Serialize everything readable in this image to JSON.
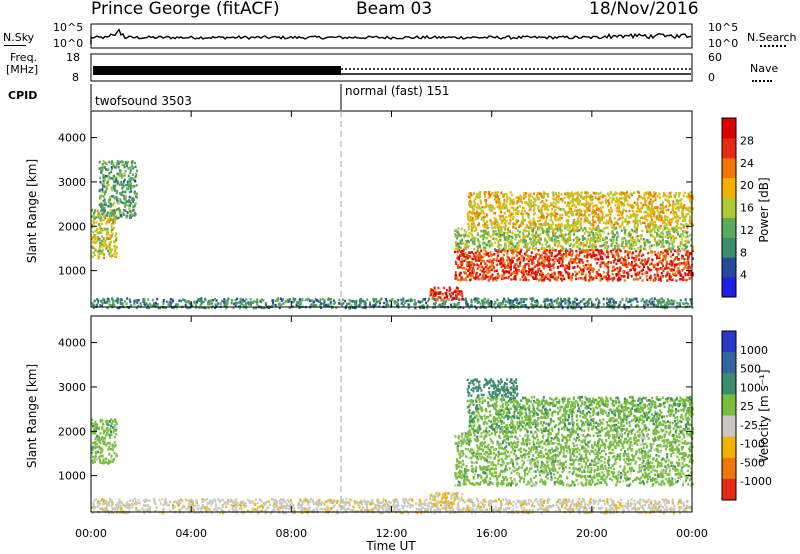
{
  "header": {
    "station": "Prince George (fitACF)",
    "beam": "Beam 03",
    "date": "18/Nov/2016"
  },
  "noise_panel": {
    "left_label": "N.Sky",
    "left_ticks": [
      "10^5",
      "10^0"
    ],
    "right_label": "N.Search",
    "right_ticks": [
      "10^5",
      "10^0"
    ]
  },
  "freq_panel": {
    "left_label_line1": "Freq.",
    "left_label_line2": "[MHz]",
    "left_ticks": [
      "18",
      "8"
    ],
    "right_label": "Nave",
    "right_ticks": [
      "60",
      "0"
    ]
  },
  "cpid_panel": {
    "label": "CPID",
    "modes": [
      {
        "name": "twofsound 3503",
        "start_hour": 0,
        "end_hour": 10
      },
      {
        "name": "normal (fast) 151",
        "start_hour": 10,
        "end_hour": 24
      }
    ]
  },
  "power_panel": {
    "ylabel": "Slant Range [km]",
    "yticks": [
      1000,
      2000,
      3000,
      4000
    ],
    "ylim": [
      180,
      4600
    ],
    "colorbar_label": "Power [dB]",
    "colorbar_ticks": [
      "4",
      "8",
      "12",
      "16",
      "20",
      "24",
      "28"
    ],
    "colors": [
      "#1e1ee6",
      "#234a9c",
      "#3c8c6e",
      "#5aaa5a",
      "#aacc32",
      "#f0b400",
      "#f07800",
      "#e62a14",
      "#dc0000"
    ]
  },
  "velocity_panel": {
    "ylabel": "Slant Range [km]",
    "yticks": [
      1000,
      2000,
      3000,
      4000
    ],
    "ylim": [
      180,
      4600
    ],
    "colorbar_label": "Velocity [m s⁻¹]",
    "colorbar_ticks": [
      "1000",
      "500",
      "100",
      "25",
      "-25",
      "-100",
      "-500",
      "-1000"
    ],
    "colors": [
      "#2838c8",
      "#3264a0",
      "#3c8c6e",
      "#78be3c",
      "#c8c8c0",
      "#f0b400",
      "#f07800",
      "#e62a14"
    ]
  },
  "time_axis": {
    "ticks": [
      "00:00",
      "04:00",
      "08:00",
      "12:00",
      "16:00",
      "20:00",
      "00:00"
    ],
    "xlabel": "Time UT",
    "xlim_hours": [
      0,
      24
    ],
    "mode_change_hour": 10
  },
  "chart_data": {
    "type": "heatmap",
    "title": "Prince George (fitACF) Beam 03 18/Nov/2016",
    "xlabel": "Time UT",
    "ylabel": "Slant Range [km]",
    "xlim": [
      "00:00",
      "00:00"
    ],
    "ylim": [
      180,
      4600
    ],
    "panels": [
      {
        "name": "Power [dB]",
        "colorbar_range": [
          0,
          30
        ],
        "regions": [
          {
            "hours": [
              0.0,
              1.0
            ],
            "range_km": [
              1300,
              2400
            ],
            "value_db": 16
          },
          {
            "hours": [
              0.3,
              1.8
            ],
            "range_km": [
              2200,
              3500
            ],
            "value_db": 10
          },
          {
            "hours": [
              0.0,
              24.0
            ],
            "range_km": [
              180,
              400
            ],
            "value_db": 8
          },
          {
            "hours": [
              13.5,
              14.8
            ],
            "range_km": [
              350,
              650
            ],
            "value_db": 28
          },
          {
            "hours": [
              14.5,
              24.0
            ],
            "range_km": [
              800,
              1500
            ],
            "value_db": 26
          },
          {
            "hours": [
              14.5,
              24.0
            ],
            "range_km": [
              1500,
              2000
            ],
            "value_db": 14
          },
          {
            "hours": [
              15.0,
              24.0
            ],
            "range_km": [
              2000,
              2800
            ],
            "value_db": 18
          }
        ]
      },
      {
        "name": "Velocity [m s⁻¹]",
        "colorbar_range": [
          -1000,
          1000
        ],
        "regions": [
          {
            "hours": [
              0.0,
              1.0
            ],
            "range_km": [
              1300,
              2300
            ],
            "value_ms": 0
          },
          {
            "hours": [
              0.0,
              24.0
            ],
            "range_km": [
              180,
              500
            ],
            "value_ms": -80
          },
          {
            "hours": [
              13.5,
              14.8
            ],
            "range_km": [
              350,
              650
            ],
            "value_ms": -100
          },
          {
            "hours": [
              14.5,
              24.0
            ],
            "range_km": [
              800,
              2000
            ],
            "value_ms": 0
          },
          {
            "hours": [
              15.0,
              24.0
            ],
            "range_km": [
              2000,
              2800
            ],
            "value_ms": 10
          },
          {
            "hours": [
              15.0,
              17.0
            ],
            "range_km": [
              2800,
              3200
            ],
            "value_ms": 60
          }
        ]
      }
    ]
  }
}
